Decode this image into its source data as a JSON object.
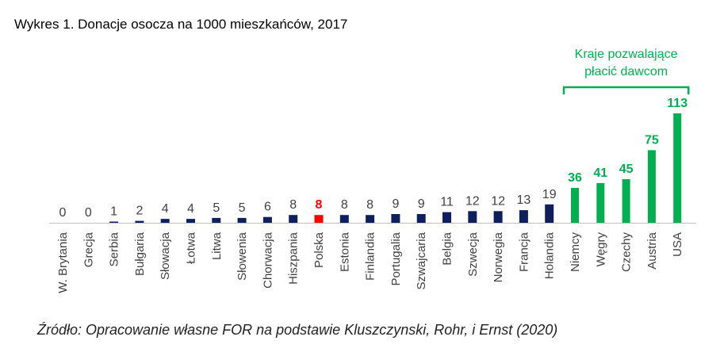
{
  "title": "Wykres 1. Donacje osocza na 1000 mieszkańców, 2017",
  "source": "Źródło: Opracowanie własne FOR na podstawie Kluszczynski, Rohr, i Ernst (2020)",
  "chart_data": {
    "type": "bar",
    "title": "Wykres 1. Donacje osocza na 1000 mieszkańców, 2017",
    "xlabel": "",
    "ylabel": "",
    "ylim": [
      0,
      113
    ],
    "grid": false,
    "legend": "none",
    "categories": [
      "W. Brytania",
      "Grecja",
      "Serbia",
      "Bułgaria",
      "Słowacja",
      "Łotwa",
      "Litwa",
      "Słowenia",
      "Chorwacja",
      "Hiszpania",
      "Polska",
      "Estonia",
      "Finlandia",
      "Portugalia",
      "Szwajcaria",
      "Belgia",
      "Szwecja",
      "Norwegia",
      "Francja",
      "Holandia",
      "Niemcy",
      "Węgry",
      "Czechy",
      "Austria",
      "USA"
    ],
    "values": [
      0,
      0,
      1,
      2,
      4,
      4,
      5,
      5,
      6,
      8,
      8,
      8,
      8,
      9,
      9,
      11,
      12,
      12,
      13,
      19,
      36,
      41,
      45,
      75,
      113
    ],
    "value_labels": [
      "0",
      "0",
      "1",
      "2",
      "4",
      "4",
      "5",
      "5",
      "6",
      "8",
      "8",
      "8",
      "8",
      "9",
      "9",
      "11",
      "12",
      "12",
      "13",
      "19",
      "36",
      "41",
      "45",
      "75",
      "113"
    ],
    "colors": {
      "default": "#0F1E5C",
      "highlight": "#FF0000",
      "paid": "#00B050",
      "value_label_default": "#404040",
      "axis": "#BFBFBF"
    },
    "highlight_category": "Polska",
    "paid_group": {
      "label_lines": [
        "Kraje pozwalające",
        "płacić dawcom"
      ],
      "categories": [
        "Niemcy",
        "Węgry",
        "Czechy",
        "Austria",
        "USA"
      ]
    }
  }
}
